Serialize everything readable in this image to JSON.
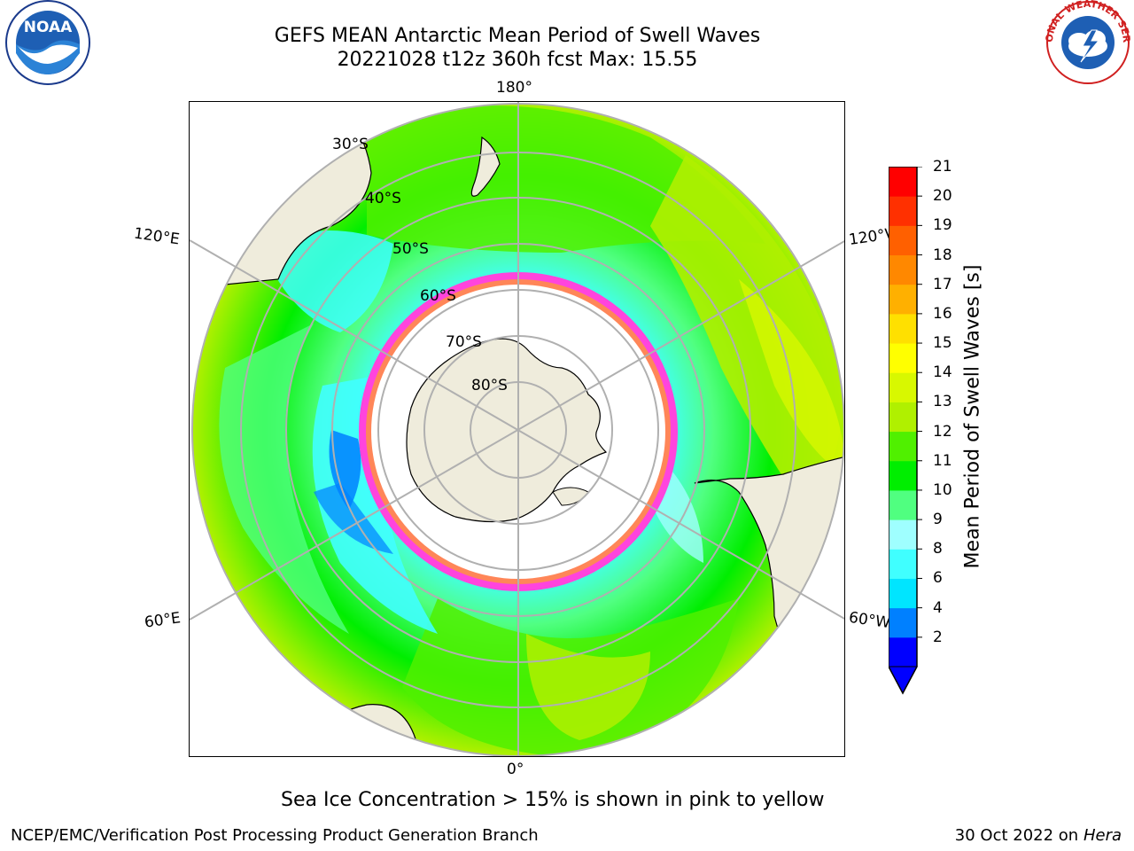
{
  "title": {
    "line1": "GEFS MEAN Antarctic Mean Period of Swell Waves",
    "line2": "20221028 t12z 360h fcst   Max: 15.55"
  },
  "logos": {
    "left": "NOAA",
    "right": "NATIONAL WEATHER SERVICE"
  },
  "map": {
    "projection": "south-polar-stereographic",
    "longitude_labels": {
      "top": "180°",
      "bottom": "0°",
      "upper_left": "120°E",
      "lower_left": "60°E",
      "upper_right": "120°W",
      "lower_right": "60°W"
    },
    "latitude_labels": [
      "30°S",
      "40°S",
      "50°S",
      "60°S",
      "70°S",
      "80°S"
    ],
    "colors": {
      "land": "#efecdc",
      "ice_low": "#ff44dd",
      "ice_high": "#ffb300",
      "grid": "#b0b0b0"
    }
  },
  "colorbar": {
    "label": "Mean Period of Swell Waves [s]",
    "ticks": [
      "21",
      "20",
      "19",
      "18",
      "17",
      "16",
      "15",
      "14",
      "13",
      "12",
      "11",
      "10",
      "9",
      "8",
      "6",
      "4",
      "2"
    ],
    "colors": [
      "#0000ff",
      "#0080ff",
      "#00e5ff",
      "#40ffff",
      "#9fffff",
      "#50ff80",
      "#00ee00",
      "#50f000",
      "#b0f000",
      "#d8f800",
      "#ffff00",
      "#ffe000",
      "#ffb000",
      "#ff8800",
      "#ff6000",
      "#ff3000",
      "#ff0000"
    ],
    "extend": "min"
  },
  "caption": "Sea Ice Concentration > 15% is shown in pink to yellow",
  "footer": {
    "left": "NCEP/EMC/Verification Post Processing Product Generation Branch",
    "right_prefix": "30 Oct 2022 on ",
    "right_italic": "Hera"
  }
}
